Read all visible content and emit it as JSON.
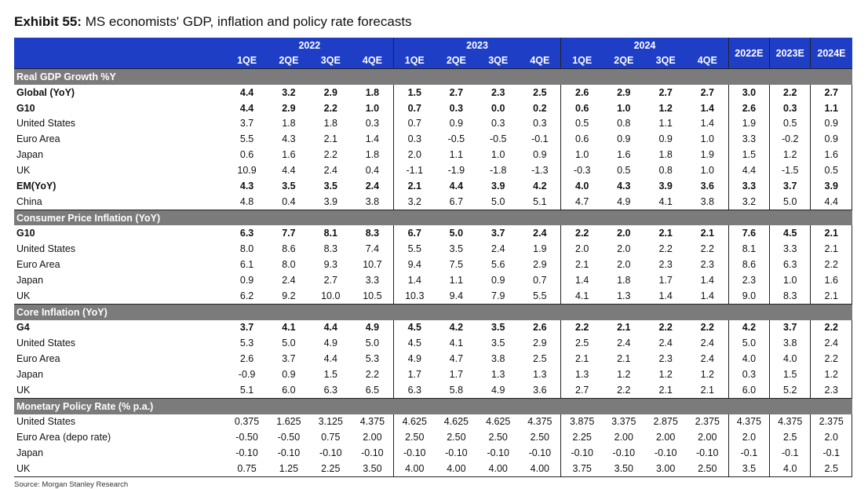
{
  "exhibit_label": "Exhibit 55:",
  "title": "MS economists' GDP, inflation and policy rate forecasts",
  "years": [
    "2022",
    "2023",
    "2024"
  ],
  "quarters": [
    "1QE",
    "2QE",
    "3QE",
    "4QE"
  ],
  "annual_headers": [
    "2022E",
    "2023E",
    "2024E"
  ],
  "sections": [
    {
      "title": "Real GDP Growth %Y",
      "rows": [
        {
          "label": "Global (YoY)",
          "bold": true,
          "values": [
            "4.4",
            "3.2",
            "2.9",
            "1.8",
            "1.5",
            "2.7",
            "2.3",
            "2.5",
            "2.6",
            "2.9",
            "2.7",
            "2.7",
            "3.0",
            "2.2",
            "2.7"
          ]
        },
        {
          "label": "G10",
          "bold": true,
          "values": [
            "4.4",
            "2.9",
            "2.2",
            "1.0",
            "0.7",
            "0.3",
            "0.0",
            "0.2",
            "0.6",
            "1.0",
            "1.2",
            "1.4",
            "2.6",
            "0.3",
            "1.1"
          ]
        },
        {
          "label": "United States",
          "bold": false,
          "values": [
            "3.7",
            "1.8",
            "1.8",
            "0.3",
            "0.7",
            "0.9",
            "0.3",
            "0.3",
            "0.5",
            "0.8",
            "1.1",
            "1.4",
            "1.9",
            "0.5",
            "0.9"
          ]
        },
        {
          "label": "Euro Area",
          "bold": false,
          "values": [
            "5.5",
            "4.3",
            "2.1",
            "1.4",
            "0.3",
            "-0.5",
            "-0.5",
            "-0.1",
            "0.6",
            "0.9",
            "0.9",
            "1.0",
            "3.3",
            "-0.2",
            "0.9"
          ]
        },
        {
          "label": "Japan",
          "bold": false,
          "values": [
            "0.6",
            "1.6",
            "2.2",
            "1.8",
            "2.0",
            "1.1",
            "1.0",
            "0.9",
            "1.0",
            "1.6",
            "1.8",
            "1.9",
            "1.5",
            "1.2",
            "1.6"
          ]
        },
        {
          "label": "UK",
          "bold": false,
          "values": [
            "10.9",
            "4.4",
            "2.4",
            "0.4",
            "-1.1",
            "-1.9",
            "-1.8",
            "-1.3",
            "-0.3",
            "0.5",
            "0.8",
            "1.0",
            "4.4",
            "-1.5",
            "0.5"
          ]
        },
        {
          "label": "EM(YoY)",
          "bold": true,
          "values": [
            "4.3",
            "3.5",
            "3.5",
            "2.4",
            "2.1",
            "4.4",
            "3.9",
            "4.2",
            "4.0",
            "4.3",
            "3.9",
            "3.6",
            "3.3",
            "3.7",
            "3.9"
          ]
        },
        {
          "label": "China",
          "bold": false,
          "values": [
            "4.8",
            "0.4",
            "3.9",
            "3.8",
            "3.2",
            "6.7",
            "5.0",
            "5.1",
            "4.7",
            "4.9",
            "4.1",
            "3.8",
            "3.2",
            "5.0",
            "4.4"
          ]
        }
      ]
    },
    {
      "title": "Consumer Price Inflation (YoY)",
      "rows": [
        {
          "label": "G10",
          "bold": true,
          "values": [
            "6.3",
            "7.7",
            "8.1",
            "8.3",
            "6.7",
            "5.0",
            "3.7",
            "2.4",
            "2.2",
            "2.0",
            "2.1",
            "2.1",
            "7.6",
            "4.5",
            "2.1"
          ]
        },
        {
          "label": "United States",
          "bold": false,
          "values": [
            "8.0",
            "8.6",
            "8.3",
            "7.4",
            "5.5",
            "3.5",
            "2.4",
            "1.9",
            "2.0",
            "2.0",
            "2.2",
            "2.2",
            "8.1",
            "3.3",
            "2.1"
          ]
        },
        {
          "label": "Euro Area",
          "bold": false,
          "values": [
            "6.1",
            "8.0",
            "9.3",
            "10.7",
            "9.4",
            "7.5",
            "5.6",
            "2.9",
            "2.1",
            "2.0",
            "2.3",
            "2.3",
            "8.6",
            "6.3",
            "2.2"
          ]
        },
        {
          "label": "Japan",
          "bold": false,
          "values": [
            "0.9",
            "2.4",
            "2.7",
            "3.3",
            "1.4",
            "1.1",
            "0.9",
            "0.7",
            "1.4",
            "1.8",
            "1.7",
            "1.4",
            "2.3",
            "1.0",
            "1.6"
          ]
        },
        {
          "label": "UK",
          "bold": false,
          "values": [
            "6.2",
            "9.2",
            "10.0",
            "10.5",
            "10.3",
            "9.4",
            "7.9",
            "5.5",
            "4.1",
            "1.3",
            "1.4",
            "1.4",
            "9.0",
            "8.3",
            "2.1"
          ]
        }
      ]
    },
    {
      "title": "Core Inflation (YoY)",
      "rows": [
        {
          "label": "G4",
          "bold": true,
          "values": [
            "3.7",
            "4.1",
            "4.4",
            "4.9",
            "4.5",
            "4.2",
            "3.5",
            "2.6",
            "2.2",
            "2.1",
            "2.2",
            "2.2",
            "4.2",
            "3.7",
            "2.2"
          ]
        },
        {
          "label": "United States",
          "bold": false,
          "values": [
            "5.3",
            "5.0",
            "4.9",
            "5.0",
            "4.5",
            "4.1",
            "3.5",
            "2.9",
            "2.5",
            "2.4",
            "2.4",
            "2.4",
            "5.0",
            "3.8",
            "2.4"
          ]
        },
        {
          "label": "Euro Area",
          "bold": false,
          "values": [
            "2.6",
            "3.7",
            "4.4",
            "5.3",
            "4.9",
            "4.7",
            "3.8",
            "2.5",
            "2.1",
            "2.1",
            "2.3",
            "2.4",
            "4.0",
            "4.0",
            "2.2"
          ]
        },
        {
          "label": "Japan",
          "bold": false,
          "values": [
            "-0.9",
            "0.9",
            "1.5",
            "2.2",
            "1.7",
            "1.7",
            "1.3",
            "1.3",
            "1.3",
            "1.2",
            "1.2",
            "1.2",
            "0.3",
            "1.5",
            "1.2"
          ]
        },
        {
          "label": "UK",
          "bold": false,
          "values": [
            "5.1",
            "6.0",
            "6.3",
            "6.5",
            "6.3",
            "5.8",
            "4.9",
            "3.6",
            "2.7",
            "2.2",
            "2.1",
            "2.1",
            "6.0",
            "5.2",
            "2.3"
          ]
        }
      ]
    },
    {
      "title": "Monetary Policy Rate (% p.a.)",
      "rows": [
        {
          "label": "United States",
          "bold": false,
          "values": [
            "0.375",
            "1.625",
            "3.125",
            "4.375",
            "4.625",
            "4.625",
            "4.625",
            "4.375",
            "3.875",
            "3.375",
            "2.875",
            "2.375",
            "4.375",
            "4.375",
            "2.375"
          ]
        },
        {
          "label": "Euro Area (depo rate)",
          "bold": false,
          "values": [
            "-0.50",
            "-0.50",
            "0.75",
            "2.00",
            "2.50",
            "2.50",
            "2.50",
            "2.50",
            "2.25",
            "2.00",
            "2.00",
            "2.00",
            "2.0",
            "2.5",
            "2.0"
          ]
        },
        {
          "label": "Japan",
          "bold": false,
          "values": [
            "-0.10",
            "-0.10",
            "-0.10",
            "-0.10",
            "-0.10",
            "-0.10",
            "-0.10",
            "-0.10",
            "-0.10",
            "-0.10",
            "-0.10",
            "-0.10",
            "-0.1",
            "-0.1",
            "-0.1"
          ]
        },
        {
          "label": "UK",
          "bold": false,
          "values": [
            "0.75",
            "1.25",
            "2.25",
            "3.50",
            "4.00",
            "4.00",
            "4.00",
            "4.00",
            "3.75",
            "3.50",
            "3.00",
            "2.50",
            "3.5",
            "4.0",
            "2.5"
          ]
        }
      ]
    }
  ],
  "source": "Source: Morgan Stanley Research",
  "colors": {
    "header_bg": "#1f3ec6",
    "section_bg": "#7b7b7b"
  }
}
